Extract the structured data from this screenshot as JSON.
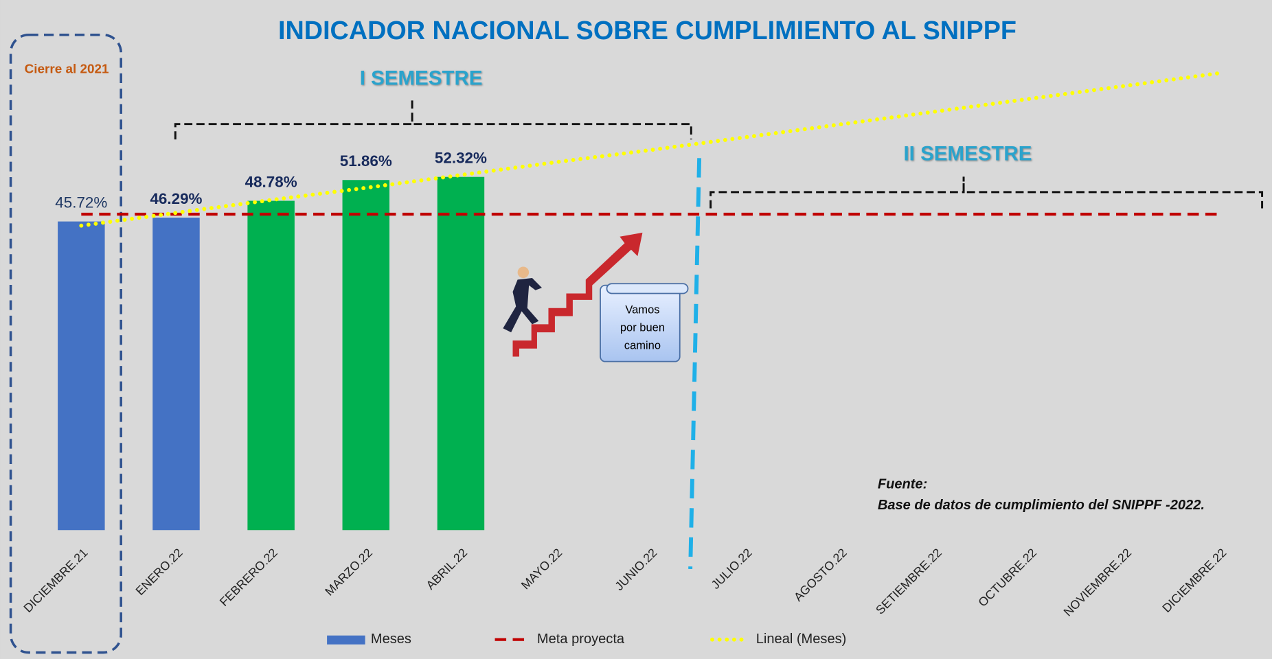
{
  "chart_data": {
    "type": "bar",
    "title": "INDICADOR NACIONAL SOBRE CUMPLIMIENTO AL SNIPPF",
    "categories": [
      "DICIEMBRE.21",
      "ENERO.22",
      "FEBRERO.22",
      "MARZO.22",
      "ABRIL.22",
      "MAYO.22",
      "JUNIO.22",
      "JULIO.22",
      "AGOSTO.22",
      "SETIEMBRE.22",
      "OCTUBRE.22",
      "NOVIEMBRE.22",
      "DICIEMBRE.22"
    ],
    "series": [
      {
        "name": "Meses",
        "type": "bar",
        "color": "#4472c4",
        "colors": [
          "#4472c4",
          "#4472c4",
          "#00b050",
          "#00b050",
          "#00b050",
          null,
          null,
          null,
          null,
          null,
          null,
          null,
          null
        ],
        "values": [
          45.72,
          46.29,
          48.78,
          51.86,
          52.32,
          null,
          null,
          null,
          null,
          null,
          null,
          null,
          null
        ],
        "value_labels": [
          "45.72%",
          "46.29%",
          "48.78%",
          "51.86%",
          "52.32%",
          null,
          null,
          null,
          null,
          null,
          null,
          null,
          null
        ]
      },
      {
        "name": "Meta proyecta",
        "type": "line",
        "color": "#c00000",
        "dash": "dashed",
        "values": [
          46.8,
          46.8,
          46.8,
          46.8,
          46.8,
          46.8,
          46.8,
          46.8,
          46.8,
          46.8,
          46.8,
          46.8,
          46.8
        ]
      },
      {
        "name": "Lineal (Meses)",
        "type": "line",
        "color": "#ffff00",
        "dash": "dotted",
        "values": [
          45.1,
          47.0,
          48.9,
          50.7,
          52.6,
          54.5,
          56.3,
          58.2,
          60.1,
          62.0,
          63.9,
          65.8,
          67.7
        ]
      }
    ],
    "ylim": [
      0,
      70
    ],
    "annotations": {
      "closing": "Cierre al 2021",
      "semester1": "I SEMESTRE",
      "semester2": "II SEMESTRE",
      "callout": [
        "Vamos",
        "por buen",
        "camino"
      ],
      "source_title": "Fuente:",
      "source_text": "Base de datos de cumplimiento del SNIPPF -2022."
    }
  }
}
